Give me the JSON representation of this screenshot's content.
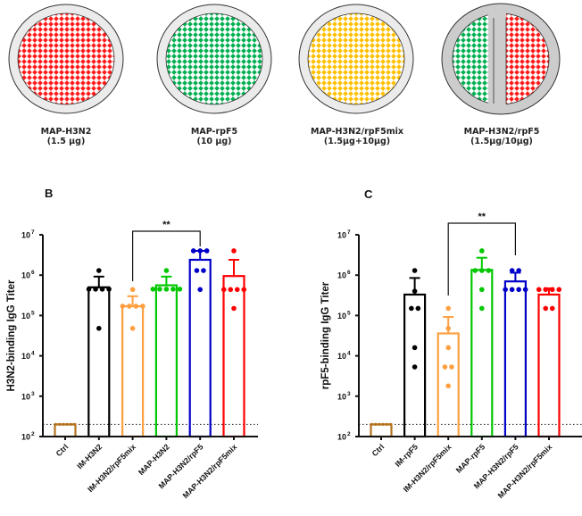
{
  "patches": [
    {
      "name": "MAP-H3N2",
      "dose": "(1.5 µg)",
      "fill": [
        "#ff1a1a"
      ]
    },
    {
      "name": "MAP-rpF5",
      "dose": "(10 µg)",
      "fill": [
        "#00b050"
      ]
    },
    {
      "name": "MAP-H3N2/rpF5mix",
      "dose": "(1.5µg+10µg)",
      "fill": [
        "#ffc000"
      ]
    },
    {
      "name": "MAP-H3N2/rpF5",
      "dose": "(1.5µg/10µg)",
      "fill": [
        "#00b050",
        "#ff1a1a"
      ]
    }
  ],
  "chart_data": [
    {
      "panel": "B",
      "type": "bar",
      "yscale": "log",
      "ylabel": "H3N2-binding IgG Titer",
      "ylim": [
        100,
        10000000
      ],
      "yticks": [
        {
          "base": "10",
          "exp": "2"
        },
        {
          "base": "10",
          "exp": "3"
        },
        {
          "base": "10",
          "exp": "4"
        },
        {
          "base": "10",
          "exp": "5"
        },
        {
          "base": "10",
          "exp": "6"
        },
        {
          "base": "10",
          "exp": "7"
        }
      ],
      "detection_limit": 200,
      "categories": [
        "Ctrl",
        "IM-H3N2",
        "IM-H3N2/rpF5mix",
        "MAP-H3N2",
        "MAP-H3N2/rpF5",
        "MAP-H3N2/rpF5mix"
      ],
      "colors": [
        "#b5721e",
        "#000000",
        "#ffa040",
        "#00c800",
        "#0000c8",
        "#ff0000"
      ],
      "means": [
        200,
        500000,
        170000,
        560000,
        2400000,
        950000
      ],
      "errors_upper": [
        200,
        920000,
        300000,
        920000,
        4000000,
        2400000
      ],
      "points": [
        [
          200,
          200,
          200,
          200,
          200,
          200
        ],
        [
          1300000,
          450000,
          450000,
          450000,
          450000,
          48000
        ],
        [
          440000,
          170000,
          170000,
          170000,
          170000,
          48000
        ],
        [
          1300000,
          450000,
          450000,
          450000,
          450000,
          450000
        ],
        [
          4000000,
          4000000,
          4000000,
          1300000,
          1300000,
          440000
        ],
        [
          4000000,
          440000,
          440000,
          440000,
          440000,
          150000
        ]
      ],
      "significance": {
        "from": 2,
        "to": 4,
        "label": "**"
      }
    },
    {
      "panel": "C",
      "type": "bar",
      "yscale": "log",
      "ylabel": "rpF5-binding IgG Titer",
      "ylim": [
        100,
        10000000
      ],
      "yticks": [
        {
          "base": "10",
          "exp": "2"
        },
        {
          "base": "10",
          "exp": "3"
        },
        {
          "base": "10",
          "exp": "4"
        },
        {
          "base": "10",
          "exp": "5"
        },
        {
          "base": "10",
          "exp": "6"
        },
        {
          "base": "10",
          "exp": "7"
        }
      ],
      "detection_limit": 200,
      "categories": [
        "Ctrl",
        "IM-rpF5",
        "IM-H3N2/rpF5mix",
        "MAP-rpF5",
        "MAP-H3N2/rpF5",
        "MAP-H3N2/rpF5mix"
      ],
      "colors": [
        "#b5721e",
        "#000000",
        "#ffa040",
        "#00c800",
        "#0000c8",
        "#ff0000"
      ],
      "means": [
        200,
        330000,
        36000,
        1350000,
        700000,
        330000
      ],
      "errors_upper": [
        200,
        850000,
        92000,
        2700000,
        1150000,
        470000
      ],
      "points": [
        [
          200,
          200,
          200,
          200,
          200,
          200
        ],
        [
          1300000,
          400000,
          150000,
          150000,
          16000,
          5300
        ],
        [
          150000,
          48000,
          16000,
          5300,
          5300,
          1800
        ],
        [
          4000000,
          1300000,
          1300000,
          1300000,
          440000,
          150000
        ],
        [
          1300000,
          1300000,
          440000,
          440000,
          440000,
          440000
        ],
        [
          440000,
          440000,
          440000,
          440000,
          150000,
          150000
        ]
      ],
      "significance": {
        "from": 2,
        "to": 4,
        "label": "**"
      }
    }
  ]
}
